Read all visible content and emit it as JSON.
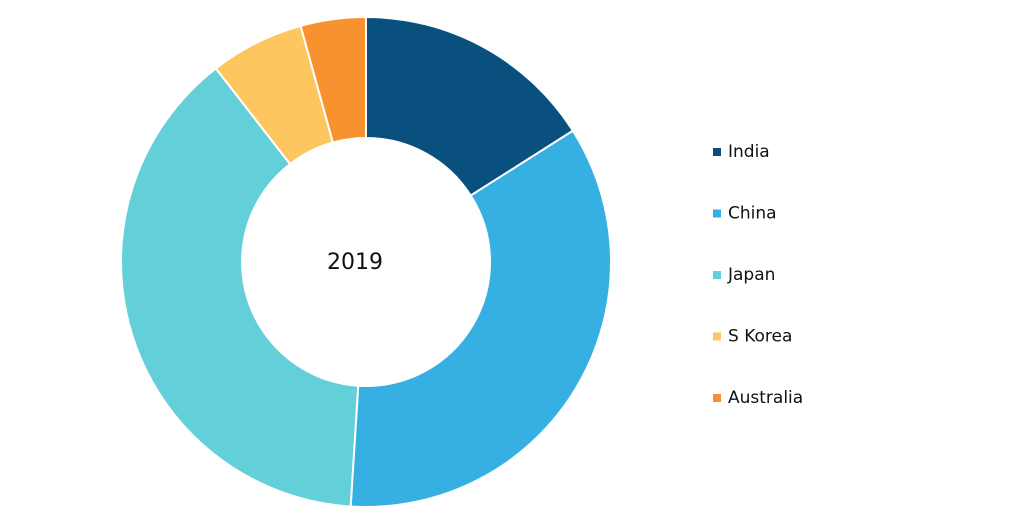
{
  "chart_data": {
    "type": "donut",
    "center_label": "2019",
    "categories": [
      "India",
      "China",
      "Japan",
      "S Korea",
      "Australia"
    ],
    "values": [
      16,
      35,
      38.5,
      6.2,
      4.3
    ],
    "colors": [
      "#0a507e",
      "#36b0e2",
      "#63cfd8",
      "#fec65f",
      "#f7922e"
    ],
    "legend": "right"
  }
}
